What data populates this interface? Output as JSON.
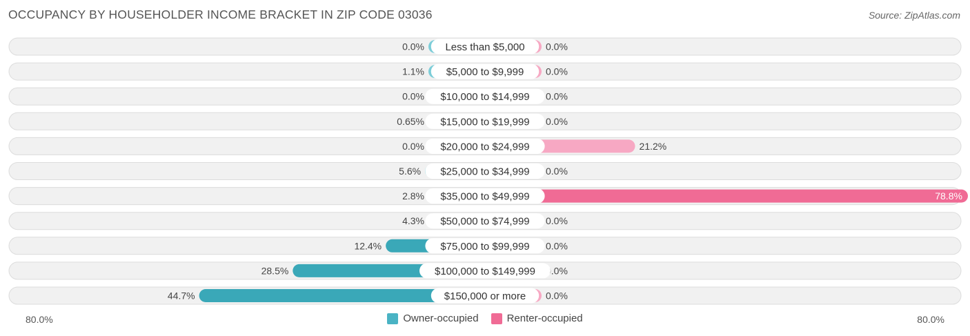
{
  "title": "OCCUPANCY BY HOUSEHOLDER INCOME BRACKET IN ZIP CODE 03036",
  "source": "Source: ZipAtlas.com",
  "axis": {
    "left_label": "80.0%",
    "right_label": "80.0%"
  },
  "legend": [
    {
      "label": "Owner-occupied",
      "color": "#4ab3c4"
    },
    {
      "label": "Renter-occupied",
      "color": "#f06b95"
    }
  ],
  "chart_data": {
    "type": "bar",
    "orientation": "diverging-horizontal",
    "xlim": [
      -80,
      80
    ],
    "categories": [
      "Less than $5,000",
      "$5,000 to $9,999",
      "$10,000 to $14,999",
      "$15,000 to $19,999",
      "$20,000 to $24,999",
      "$25,000 to $34,999",
      "$35,000 to $49,999",
      "$50,000 to $74,999",
      "$75,000 to $99,999",
      "$100,000 to $149,999",
      "$150,000 or more"
    ],
    "series": [
      {
        "name": "Owner-occupied",
        "values": [
          0.0,
          1.1,
          0.0,
          0.65,
          0.0,
          5.6,
          2.8,
          4.3,
          12.4,
          28.5,
          44.7
        ],
        "labels": [
          "0.0%",
          "1.1%",
          "0.0%",
          "0.65%",
          "0.0%",
          "5.6%",
          "2.8%",
          "4.3%",
          "12.4%",
          "28.5%",
          "44.7%"
        ]
      },
      {
        "name": "Renter-occupied",
        "values": [
          0.0,
          0.0,
          0.0,
          0.0,
          21.2,
          0.0,
          78.8,
          0.0,
          0.0,
          0.0,
          0.0
        ],
        "labels": [
          "0.0%",
          "0.0%",
          "0.0%",
          "0.0%",
          "21.2%",
          "0.0%",
          "78.8%",
          "0.0%",
          "0.0%",
          "0.0%",
          "0.0%"
        ]
      }
    ],
    "colors": {
      "owner_light": "#7ccdd8",
      "owner_dark": "#3aa8b8",
      "renter_light": "#f7a8c3",
      "renter_dark": "#f06b95",
      "row_bg": "#f1f1f1",
      "row_border": "#dcdcdc"
    }
  }
}
